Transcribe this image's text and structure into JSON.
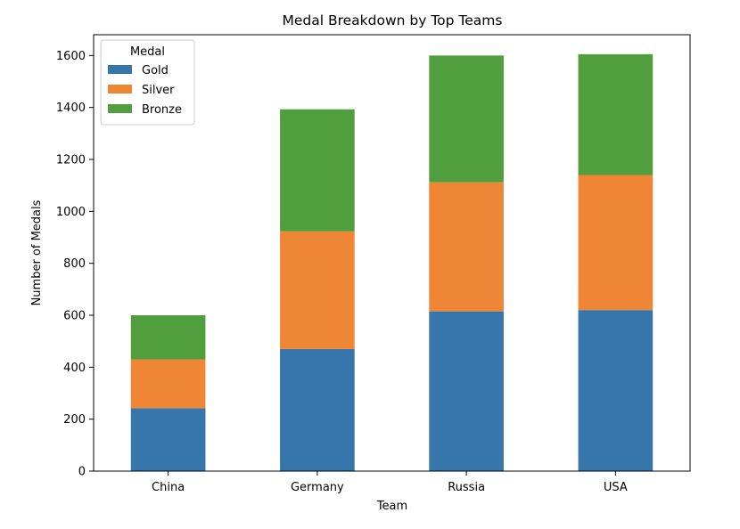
{
  "chart_data": {
    "type": "bar",
    "stacked": true,
    "title": "Medal Breakdown by Top Teams",
    "xlabel": "Team",
    "ylabel": "Number of Medals",
    "categories": [
      "China",
      "Germany",
      "Russia",
      "USA"
    ],
    "series": [
      {
        "name": "Gold",
        "color": "#3776ab",
        "values": [
          242,
          470,
          615,
          620
        ]
      },
      {
        "name": "Silver",
        "color": "#ef8636",
        "values": [
          188,
          453,
          497,
          520
        ]
      },
      {
        "name": "Bronze",
        "color": "#519e3e",
        "values": [
          170,
          470,
          488,
          465
        ]
      }
    ],
    "ylim": [
      0,
      1680
    ],
    "yticks": [
      0,
      200,
      400,
      600,
      800,
      1000,
      1200,
      1400,
      1600
    ],
    "grid": false,
    "legend": {
      "title": "Medal",
      "position": "top-left"
    }
  }
}
